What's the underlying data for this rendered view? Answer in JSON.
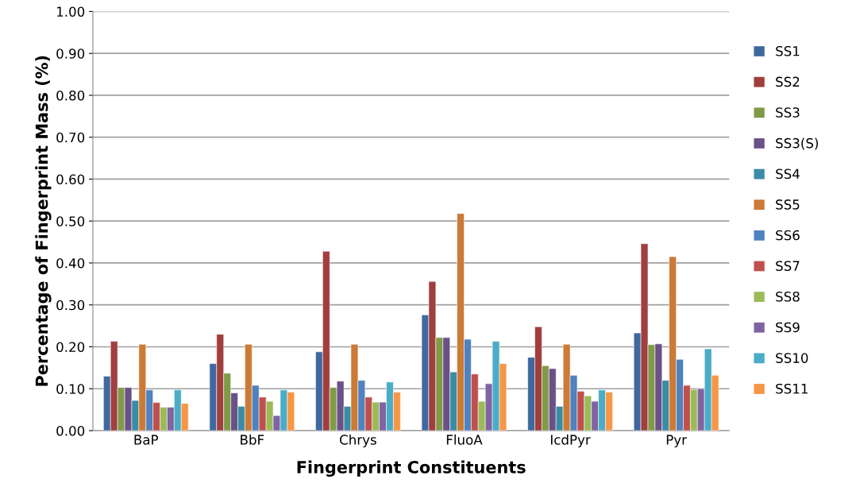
{
  "chart_data": {
    "type": "bar",
    "xlabel": "Fingerprint Constituents",
    "ylabel": "Percentage of Fingerprint Mass (%)",
    "categories": [
      "BaP",
      "BbF",
      "Chrys",
      "FluoA",
      "IcdPyr",
      "Pyr"
    ],
    "ylim": [
      0,
      1
    ],
    "yticks": [
      {
        "value": 0,
        "label": "0.00"
      },
      {
        "value": 0.1,
        "label": "0.10"
      },
      {
        "value": 0.2,
        "label": "0.20"
      },
      {
        "value": 0.3,
        "label": "0.30"
      },
      {
        "value": 0.4,
        "label": "0.40"
      },
      {
        "value": 0.5,
        "label": "0.50"
      },
      {
        "value": 0.6,
        "label": "0.60"
      },
      {
        "value": 0.7,
        "label": "0.70"
      },
      {
        "value": 0.8,
        "label": "0.80"
      },
      {
        "value": 0.9,
        "label": "0.90"
      },
      {
        "value": 1,
        "label": "1.00"
      }
    ],
    "grid": "y",
    "legend": "right",
    "series": [
      {
        "name": "SS1",
        "color": "#4068a0",
        "values": [
          0.13,
          0.16,
          0.188,
          0.276,
          0.175,
          0.233
        ]
      },
      {
        "name": "SS2",
        "color": "#a03f3d",
        "values": [
          0.213,
          0.23,
          0.428,
          0.356,
          0.248,
          0.446
        ]
      },
      {
        "name": "SS3",
        "color": "#809a48",
        "values": [
          0.103,
          0.137,
          0.103,
          0.222,
          0.155,
          0.205
        ]
      },
      {
        "name": "SS3(S)",
        "color": "#6a5188",
        "values": [
          0.103,
          0.09,
          0.118,
          0.222,
          0.148,
          0.207
        ]
      },
      {
        "name": "SS4",
        "color": "#3a8ca4",
        "values": [
          0.072,
          0.058,
          0.058,
          0.14,
          0.058,
          0.12
        ]
      },
      {
        "name": "SS5",
        "color": "#cc7a36",
        "values": [
          0.206,
          0.206,
          0.206,
          0.518,
          0.206,
          0.415
        ]
      },
      {
        "name": "SS6",
        "color": "#4f82be",
        "values": [
          0.097,
          0.108,
          0.12,
          0.218,
          0.132,
          0.17
        ]
      },
      {
        "name": "SS7",
        "color": "#c0504d",
        "values": [
          0.067,
          0.08,
          0.08,
          0.135,
          0.094,
          0.108
        ]
      },
      {
        "name": "SS8",
        "color": "#9bbb59",
        "values": [
          0.056,
          0.07,
          0.068,
          0.07,
          0.083,
          0.098
        ]
      },
      {
        "name": "SS9",
        "color": "#8064a2",
        "values": [
          0.056,
          0.036,
          0.068,
          0.112,
          0.07,
          0.1
        ]
      },
      {
        "name": "SS10",
        "color": "#4bacc6",
        "values": [
          0.097,
          0.097,
          0.116,
          0.213,
          0.097,
          0.195
        ]
      },
      {
        "name": "SS11",
        "color": "#f79646",
        "values": [
          0.065,
          0.092,
          0.092,
          0.16,
          0.092,
          0.132
        ]
      }
    ]
  }
}
